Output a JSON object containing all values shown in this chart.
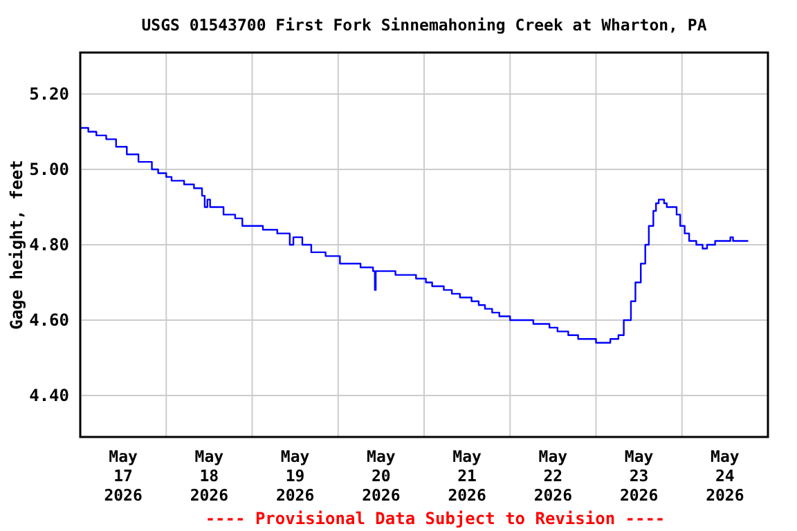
{
  "chart_data": {
    "type": "step",
    "title": "USGS 01543700 First Fork Sinnemahoning Creek at Wharton, PA",
    "ylabel": "Gage height, feet",
    "annotations": [
      "---- Provisional Data Subject to Revision ----"
    ],
    "grid": true,
    "line_style": "solid",
    "marker": "none",
    "xlim": [
      "2026-05-17T00:00",
      "2026-05-25T00:00"
    ],
    "xticks": [
      {
        "value": "2026-05-17T12:00",
        "label": "May\n17\n2026"
      },
      {
        "value": "2026-05-18T12:00",
        "label": "May\n18\n2026"
      },
      {
        "value": "2026-05-19T12:00",
        "label": "May\n19\n2026"
      },
      {
        "value": "2026-05-20T12:00",
        "label": "May\n20\n2026"
      },
      {
        "value": "2026-05-21T12:00",
        "label": "May\n21\n2026"
      },
      {
        "value": "2026-05-22T12:00",
        "label": "May\n22\n2026"
      },
      {
        "value": "2026-05-23T12:00",
        "label": "May\n23\n2026"
      },
      {
        "value": "2026-05-24T12:00",
        "label": "May\n24\n2026"
      },
      {
        "value": "2026-05-18T00:00",
        "label": null
      },
      {
        "value": "2026-05-19T00:00",
        "label": null
      },
      {
        "value": "2026-05-20T00:00",
        "label": null
      },
      {
        "value": "2026-05-21T00:00",
        "label": null
      },
      {
        "value": "2026-05-22T00:00",
        "label": null
      },
      {
        "value": "2026-05-23T00:00",
        "label": null
      },
      {
        "value": "2026-05-24T00:00",
        "label": null
      }
    ],
    "ylim": [
      4.29,
      5.31
    ],
    "yticks": [
      {
        "value": 4.4,
        "label": "4.40"
      },
      {
        "value": 4.6,
        "label": "4.60"
      },
      {
        "value": 4.8,
        "label": "4.80"
      },
      {
        "value": 5.0,
        "label": "5.00"
      },
      {
        "value": 5.2,
        "label": "5.20"
      }
    ],
    "series": [
      {
        "color": "#0000ff",
        "x": [
          "2026-05-17T00:00",
          "2026-05-17T02:15",
          "2026-05-17T04:30",
          "2026-05-17T07:15",
          "2026-05-17T10:00",
          "2026-05-17T13:00",
          "2026-05-17T16:15",
          "2026-05-17T20:00",
          "2026-05-17T21:45",
          "2026-05-18T00:00",
          "2026-05-18T01:30",
          "2026-05-18T05:00",
          "2026-05-18T07:45",
          "2026-05-18T10:00",
          "2026-05-18T10:45",
          "2026-05-18T11:30",
          "2026-05-18T12:15",
          "2026-05-18T16:00",
          "2026-05-18T19:15",
          "2026-05-18T21:15",
          "2026-05-19T03:00",
          "2026-05-19T07:00",
          "2026-05-19T10:30",
          "2026-05-19T11:30",
          "2026-05-19T14:00",
          "2026-05-19T16:30",
          "2026-05-19T20:30",
          "2026-05-20T00:30",
          "2026-05-20T06:15",
          "2026-05-20T09:45",
          "2026-05-20T10:15",
          "2026-05-20T10:30",
          "2026-05-20T16:00",
          "2026-05-20T21:45",
          "2026-05-21T00:30",
          "2026-05-21T02:15",
          "2026-05-21T05:30",
          "2026-05-21T07:45",
          "2026-05-21T10:00",
          "2026-05-21T13:15",
          "2026-05-21T15:15",
          "2026-05-21T17:00",
          "2026-05-21T19:00",
          "2026-05-21T21:00",
          "2026-05-22T00:00",
          "2026-05-22T06:30",
          "2026-05-22T11:00",
          "2026-05-22T13:15",
          "2026-05-22T16:15",
          "2026-05-22T19:00",
          "2026-05-23T00:00",
          "2026-05-23T04:00",
          "2026-05-23T06:15",
          "2026-05-23T07:45",
          "2026-05-23T09:45",
          "2026-05-23T11:00",
          "2026-05-23T12:30",
          "2026-05-23T13:45",
          "2026-05-23T14:45",
          "2026-05-23T16:00",
          "2026-05-23T16:45",
          "2026-05-23T17:30",
          "2026-05-23T19:00",
          "2026-05-23T19:45",
          "2026-05-23T21:45",
          "2026-05-23T22:30",
          "2026-05-23T23:30",
          "2026-05-24T00:45",
          "2026-05-24T02:00",
          "2026-05-24T04:00",
          "2026-05-24T05:45",
          "2026-05-24T07:00",
          "2026-05-24T09:15",
          "2026-05-24T13:30",
          "2026-05-24T14:15",
          "2026-05-24T18:30"
        ],
        "values": [
          5.11,
          5.1,
          5.09,
          5.08,
          5.06,
          5.04,
          5.02,
          5.0,
          4.99,
          4.98,
          4.97,
          4.96,
          4.95,
          4.93,
          4.9,
          4.92,
          4.9,
          4.88,
          4.87,
          4.85,
          4.84,
          4.83,
          4.8,
          4.82,
          4.8,
          4.78,
          4.77,
          4.75,
          4.74,
          4.73,
          4.68,
          4.73,
          4.72,
          4.71,
          4.7,
          4.69,
          4.68,
          4.67,
          4.66,
          4.65,
          4.64,
          4.63,
          4.62,
          4.61,
          4.6,
          4.59,
          4.58,
          4.57,
          4.56,
          4.55,
          4.54,
          4.55,
          4.56,
          4.6,
          4.65,
          4.7,
          4.75,
          4.8,
          4.85,
          4.89,
          4.91,
          4.92,
          4.91,
          4.9,
          4.9,
          4.88,
          4.85,
          4.83,
          4.81,
          4.8,
          4.79,
          4.8,
          4.81,
          4.82,
          4.81,
          4.81
        ]
      }
    ]
  }
}
